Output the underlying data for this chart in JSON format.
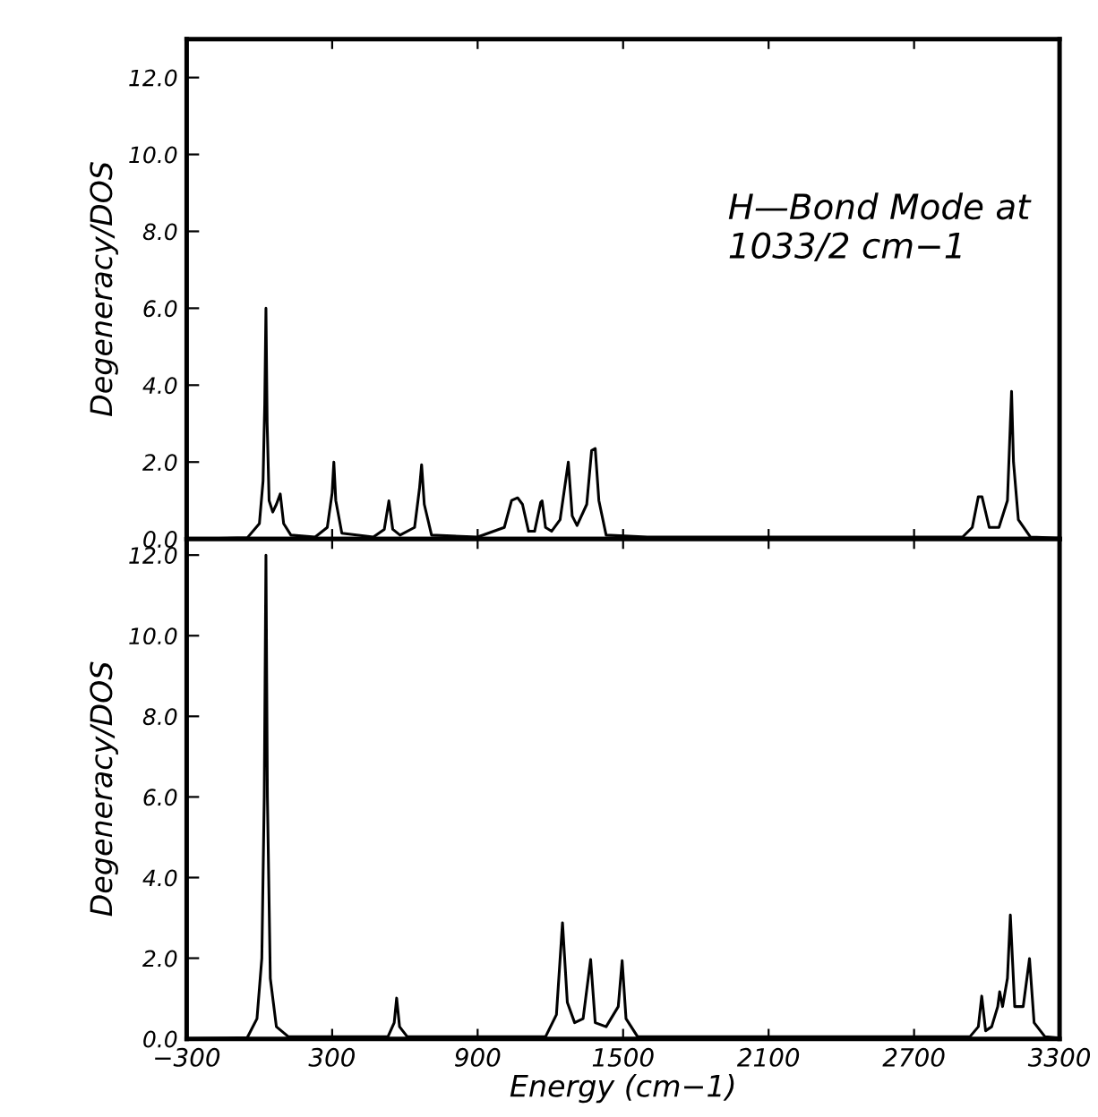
{
  "chart_data": [
    {
      "type": "line",
      "ylabel": "Degeneracy/DOS",
      "annotations": [
        "H—Bond Mode at\n1033/2 cm−1"
      ],
      "tick_labels": "y",
      "xlim": [
        -300,
        3300
      ],
      "ylim": [
        0,
        13
      ],
      "xticks": [
        -300,
        300,
        900,
        1500,
        2100,
        2700,
        3300
      ],
      "yticks": [
        {
          "value": 0,
          "label": "0.0"
        },
        {
          "value": 2,
          "label": "2.0"
        },
        {
          "value": 4,
          "label": "4.0"
        },
        {
          "value": 6,
          "label": "6.0"
        },
        {
          "value": 8,
          "label": "8.0"
        },
        {
          "value": 10,
          "label": "10.0"
        },
        {
          "value": 12,
          "label": "12.0"
        }
      ],
      "grid": false,
      "series": [
        {
          "color": "#000000",
          "x": [
            -300,
            -50,
            0,
            15,
            22,
            27,
            32,
            40,
            55,
            70,
            86,
            100,
            130,
            230,
            280,
            300,
            307,
            315,
            340,
            470,
            515,
            534,
            550,
            580,
            640,
            660,
            669,
            680,
            710,
            900,
            1010,
            1040,
            1065,
            1085,
            1110,
            1135,
            1160,
            1166,
            1180,
            1205,
            1240,
            1274,
            1290,
            1310,
            1350,
            1370,
            1385,
            1400,
            1430,
            1600,
            2900,
            2940,
            2965,
            2980,
            3010,
            3050,
            3085,
            3097,
            3102,
            3110,
            3130,
            3180,
            3300
          ],
          "values": [
            0,
            0.03,
            0.4,
            1.5,
            3.5,
            6.0,
            3.0,
            1.0,
            0.7,
            0.9,
            1.17,
            0.4,
            0.1,
            0.05,
            0.3,
            1.2,
            2.0,
            1.0,
            0.15,
            0.05,
            0.25,
            0.99,
            0.25,
            0.1,
            0.3,
            1.3,
            1.93,
            0.9,
            0.1,
            0.05,
            0.3,
            1.0,
            1.07,
            0.9,
            0.2,
            0.2,
            0.95,
            0.99,
            0.3,
            0.2,
            0.5,
            2.0,
            0.6,
            0.35,
            0.9,
            2.3,
            2.35,
            1.0,
            0.1,
            0.05,
            0.05,
            0.3,
            1.1,
            1.1,
            0.3,
            0.3,
            1.0,
            3.0,
            3.84,
            2.0,
            0.5,
            0.05,
            0.02
          ]
        }
      ]
    },
    {
      "type": "line",
      "ylabel": "Degeneracy/DOS",
      "xlabel": "Energy (cm−1)",
      "xlim": [
        -300,
        3300
      ],
      "ylim": [
        0,
        12.4
      ],
      "xticks": [
        {
          "value": -300,
          "label": "−300"
        },
        300,
        900,
        1500,
        2100,
        2700,
        3300
      ],
      "yticks": [
        {
          "value": 0,
          "label": "0.0"
        },
        {
          "value": 2,
          "label": "2.0"
        },
        {
          "value": 4,
          "label": "4.0"
        },
        {
          "value": 6,
          "label": "6.0"
        },
        {
          "value": 8,
          "label": "8.0"
        },
        {
          "value": 10,
          "label": "10.0"
        },
        {
          "value": 12,
          "label": "12.0"
        }
      ],
      "grid": false,
      "series": [
        {
          "color": "#000000",
          "x": [
            -300,
            -50,
            -10,
            10,
            20,
            27,
            33,
            45,
            70,
            120,
            530,
            556,
            566,
            578,
            610,
            1180,
            1225,
            1250,
            1270,
            1300,
            1335,
            1366,
            1385,
            1430,
            1480,
            1496,
            1512,
            1560,
            2930,
            2965,
            2979,
            2995,
            3020,
            3045,
            3053,
            3065,
            3085,
            3097,
            3115,
            3150,
            3176,
            3195,
            3240,
            3300
          ],
          "values": [
            0,
            0.03,
            0.5,
            2.0,
            6.0,
            12.0,
            6.0,
            1.5,
            0.3,
            0.05,
            0.05,
            0.4,
            1.01,
            0.3,
            0.05,
            0.05,
            0.6,
            2.88,
            0.9,
            0.4,
            0.5,
            1.97,
            0.4,
            0.3,
            0.8,
            1.94,
            0.5,
            0.05,
            0.05,
            0.3,
            1.06,
            0.2,
            0.3,
            0.8,
            1.17,
            0.8,
            1.5,
            3.07,
            0.8,
            0.8,
            1.99,
            0.4,
            0.05,
            0.02
          ]
        }
      ]
    }
  ]
}
